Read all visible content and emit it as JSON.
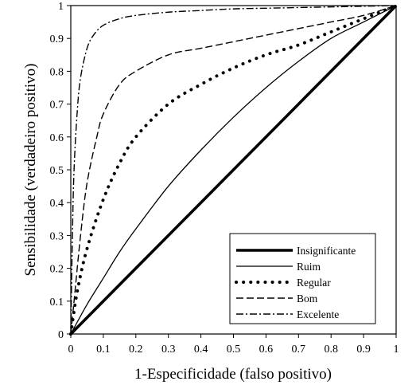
{
  "chart_data": {
    "type": "line",
    "title": "",
    "xlabel": "1-Especificidade (falso positivo)",
    "ylabel": "Sensibilidade  (verdadeiro positivo)",
    "xlim": [
      0,
      1
    ],
    "ylim": [
      0,
      1
    ],
    "x_ticks": [
      "0",
      "0.1",
      "0.2",
      "0.3",
      "0.4",
      "0.5",
      "0.6",
      "0.7",
      "0.8",
      "0.9",
      "1"
    ],
    "y_ticks": [
      "0",
      "0.1",
      "0.2",
      "0.3",
      "0.4",
      "0.5",
      "0.6",
      "0.7",
      "0.8",
      "0.9",
      "1"
    ],
    "grid": false,
    "legend_position": "bottom-right",
    "series": [
      {
        "name": "Insignificante",
        "style": "solid-thick",
        "x": [
          0,
          0.5,
          1
        ],
        "y": [
          0,
          0.5,
          1
        ]
      },
      {
        "name": "Ruim",
        "style": "solid-thin",
        "x": [
          0,
          0.05,
          0.1,
          0.15,
          0.2,
          0.3,
          0.4,
          0.5,
          0.6,
          0.7,
          0.8,
          0.9,
          1
        ],
        "y": [
          0,
          0.09,
          0.17,
          0.25,
          0.32,
          0.45,
          0.56,
          0.66,
          0.75,
          0.83,
          0.9,
          0.95,
          1
        ]
      },
      {
        "name": "Regular",
        "style": "dotted",
        "x": [
          0,
          0.02,
          0.05,
          0.1,
          0.15,
          0.2,
          0.3,
          0.4,
          0.5,
          0.6,
          0.7,
          0.8,
          0.9,
          1
        ],
        "y": [
          0,
          0.13,
          0.26,
          0.41,
          0.52,
          0.6,
          0.7,
          0.76,
          0.81,
          0.85,
          0.88,
          0.92,
          0.96,
          1
        ]
      },
      {
        "name": "Bom",
        "style": "dashed",
        "x": [
          0,
          0.01,
          0.03,
          0.05,
          0.08,
          0.1,
          0.15,
          0.2,
          0.3,
          0.4,
          0.5,
          0.6,
          0.7,
          0.8,
          0.9,
          1
        ],
        "y": [
          0,
          0.1,
          0.3,
          0.46,
          0.6,
          0.67,
          0.76,
          0.8,
          0.85,
          0.87,
          0.89,
          0.91,
          0.93,
          0.95,
          0.97,
          1
        ]
      },
      {
        "name": "Excelente",
        "style": "dash-dot",
        "x": [
          0,
          0.005,
          0.01,
          0.02,
          0.03,
          0.05,
          0.07,
          0.1,
          0.15,
          0.2,
          0.3,
          0.4,
          0.5,
          0.6,
          0.7,
          0.8,
          0.9,
          1
        ],
        "y": [
          0,
          0.3,
          0.5,
          0.68,
          0.78,
          0.87,
          0.91,
          0.94,
          0.96,
          0.97,
          0.98,
          0.985,
          0.99,
          0.992,
          0.994,
          0.996,
          0.998,
          1
        ]
      }
    ]
  }
}
